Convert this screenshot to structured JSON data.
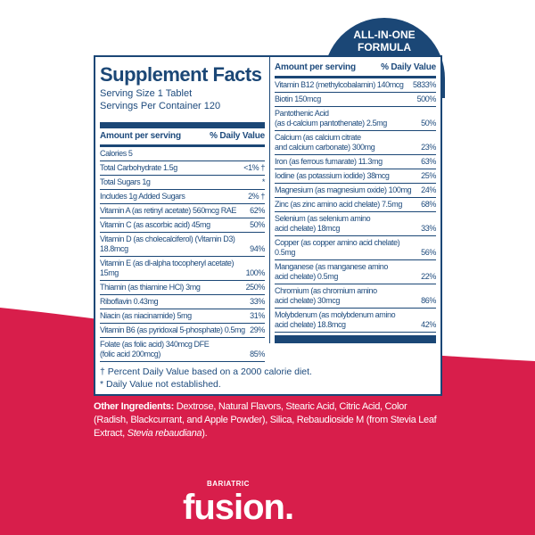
{
  "badge": {
    "line1": "ALL-IN-ONE",
    "line2": "FORMULA"
  },
  "facts": {
    "title": "Supplement Facts",
    "serving_size": "Serving Size 1 Tablet",
    "servings_per_container": "Servings Per Container 120",
    "header_amount": "Amount per serving",
    "header_dv": "% Daily Value",
    "left_rows": [
      {
        "name": "Calories 5",
        "dv": ""
      },
      {
        "name": "Total Carbohydrate 1.5g",
        "dv": "<1% †"
      },
      {
        "name": "   Total Sugars 1g",
        "dv": "*"
      },
      {
        "name": "      Includes 1g Added Sugars",
        "dv": "2% †"
      },
      {
        "name": "Vitamin A (as retinyl acetate) 560mcg RAE",
        "dv": "62%"
      },
      {
        "name": "Vitamin C (as ascorbic acid) 45mg",
        "dv": "50%"
      },
      {
        "name": "Vitamin D (as cholecalciferol) (Vitamin D3) 18.8mcg",
        "dv": "94%"
      },
      {
        "name": "Vitamin E (as dl-alpha tocopheryl acetate) 15mg",
        "dv": "100%"
      },
      {
        "name": "Thiamin (as thiamine HCl) 3mg",
        "dv": "250%"
      },
      {
        "name": "Riboflavin 0.43mg",
        "dv": "33%"
      },
      {
        "name": "Niacin (as niacinamide) 5mg",
        "dv": "31%"
      },
      {
        "name": "Vitamin B6 (as pyridoxal 5-phosphate) 0.5mg",
        "dv": "29%"
      },
      {
        "name": "Folate (as folic acid) 340mcg DFE\n   (folic acid 200mcg)",
        "dv": "85%"
      }
    ],
    "right_rows": [
      {
        "name": "Vitamin B12 (methylcobalamin) 140mcg",
        "dv": "5833%"
      },
      {
        "name": "Biotin 150mcg",
        "dv": "500%"
      },
      {
        "name": "Pantothenic Acid\n   (as d-calcium pantothenate) 2.5mg",
        "dv": "50%"
      },
      {
        "name": "Calcium (as calcium citrate\n   and calcium carbonate) 300mg",
        "dv": "23%"
      },
      {
        "name": "Iron (as ferrous fumarate) 11.3mg",
        "dv": "63%"
      },
      {
        "name": "Iodine (as potassium iodide) 38mcg",
        "dv": "25%"
      },
      {
        "name": "Magnesium (as magnesium oxide) 100mg",
        "dv": "24%"
      },
      {
        "name": "Zinc (as zinc amino acid chelate) 7.5mg",
        "dv": "68%"
      },
      {
        "name": "Selenium (as selenium amino\n   acid chelate) 18mcg",
        "dv": "33%"
      },
      {
        "name": "Copper (as copper amino acid chelate) 0.5mg",
        "dv": "56%"
      },
      {
        "name": "Manganese (as manganese amino\n   acid chelate) 0.5mg",
        "dv": "22%"
      },
      {
        "name": "Chromium (as chromium amino\n   acid chelate) 30mcg",
        "dv": "86%"
      },
      {
        "name": "Molybdenum (as molybdenum amino\n   acid chelate) 18.8mcg",
        "dv": "42%"
      }
    ],
    "footnote1": "† Percent Daily Value based on a 2000 calorie diet.",
    "footnote2": "* Daily Value not established."
  },
  "other_ingredients": {
    "label": "Other Ingredients:",
    "text": " Dextrose, Natural Flavors, Stearic Acid, Citric Acid, Color (Radish, Blackcurrant, and Apple Powder), Silica, Rebaudioside M (from Stevia Leaf Extract, ",
    "italic": "Stevia rebaudiana",
    "end": ")."
  },
  "logo": {
    "small": "BARIATRIC",
    "main": "fusion."
  },
  "colors": {
    "navy": "#1b4776",
    "red": "#d81e4b",
    "white": "#ffffff"
  }
}
